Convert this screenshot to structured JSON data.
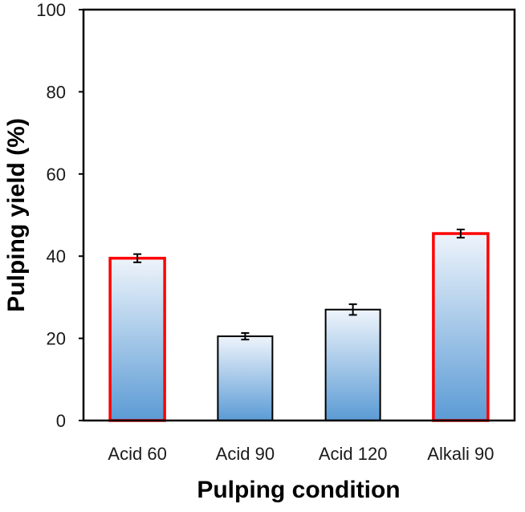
{
  "colors": {
    "bar_top": "#eef4fb",
    "bar_bottom": "#5b9bd5",
    "bar_outline": "#000000",
    "highlight_outline": "#ff0000",
    "axis": "#000000"
  },
  "chart_data": {
    "type": "bar",
    "title": "",
    "xlabel": "Pulping condition",
    "ylabel": "Pulping yield (%)",
    "ylim": [
      0,
      100
    ],
    "yticks": [
      0,
      20,
      40,
      60,
      80,
      100
    ],
    "ytick_labels": [
      "0",
      "20",
      "40",
      "60",
      "80",
      "100"
    ],
    "categories": [
      "Acid 60",
      "Acid 90",
      "Acid 120",
      "Alkali 90"
    ],
    "values": [
      39.5,
      20.5,
      27,
      45.5
    ],
    "errors": [
      1.0,
      0.8,
      1.3,
      1.0
    ],
    "highlighted": [
      true,
      false,
      false,
      true
    ],
    "grid": false,
    "legend": "none"
  }
}
